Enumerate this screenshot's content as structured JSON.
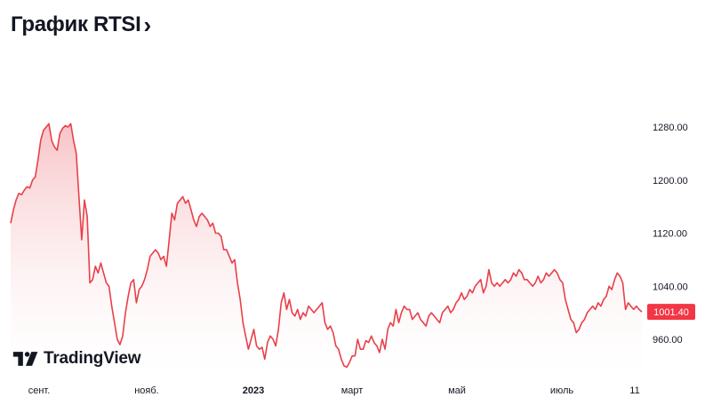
{
  "header": {
    "title": "График RTSI",
    "chevron": "›"
  },
  "branding": {
    "name": "TradingView",
    "logo_icon": "tradingview-logo-icon"
  },
  "colors": {
    "line": "#e8404a",
    "fill_top": "#f6b9bd",
    "fill_bottom": "#ffffff",
    "badge": "#f23645"
  },
  "chart_data": {
    "type": "area",
    "title": "График RTSI",
    "xlabel": "",
    "ylabel": "",
    "ylim": [
      920,
      1300
    ],
    "y_ticks": [
      1280,
      1200,
      1120,
      1040,
      960
    ],
    "y_tick_labels": [
      "1280.00",
      "1200.00",
      "1120.00",
      "1040.00",
      "960.00"
    ],
    "x_tick_labels": [
      {
        "label": "сент.",
        "bold": false
      },
      {
        "label": "нояб.",
        "bold": false
      },
      {
        "label": "2023",
        "bold": true
      },
      {
        "label": "март",
        "bold": false
      },
      {
        "label": "май",
        "bold": false
      },
      {
        "label": "июль",
        "bold": false
      },
      {
        "label": "11",
        "bold": false
      }
    ],
    "last_value": "1001.40",
    "grid": false,
    "legend": "none",
    "values": [
      1135,
      1155,
      1170,
      1180,
      1178,
      1185,
      1190,
      1188,
      1200,
      1205,
      1230,
      1260,
      1275,
      1280,
      1285,
      1260,
      1250,
      1245,
      1270,
      1278,
      1282,
      1280,
      1285,
      1260,
      1240,
      1175,
      1110,
      1170,
      1145,
      1045,
      1050,
      1070,
      1060,
      1075,
      1060,
      1045,
      1040,
      1010,
      985,
      960,
      952,
      965,
      1000,
      1025,
      1045,
      1050,
      1015,
      1035,
      1040,
      1050,
      1065,
      1085,
      1090,
      1095,
      1090,
      1080,
      1085,
      1070,
      1110,
      1150,
      1140,
      1165,
      1170,
      1175,
      1165,
      1170,
      1155,
      1140,
      1130,
      1145,
      1150,
      1145,
      1140,
      1130,
      1135,
      1120,
      1120,
      1115,
      1095,
      1095,
      1085,
      1075,
      1080,
      1045,
      1020,
      985,
      965,
      945,
      960,
      975,
      950,
      945,
      948,
      930,
      955,
      965,
      960,
      950,
      975,
      1015,
      1030,
      1005,
      1020,
      1000,
      995,
      1005,
      990,
      1000,
      995,
      1010,
      1005,
      1000,
      1005,
      1010,
      1015,
      985,
      975,
      980,
      970,
      950,
      945,
      930,
      920,
      918,
      925,
      935,
      935,
      960,
      945,
      945,
      958,
      955,
      965,
      955,
      950,
      940,
      960,
      945,
      975,
      985,
      980,
      1005,
      985,
      1000,
      1010,
      1005,
      1005,
      990,
      995,
      1000,
      990,
      985,
      980,
      995,
      1000,
      995,
      990,
      985,
      1000,
      1005,
      1010,
      1000,
      1005,
      1015,
      1020,
      1030,
      1020,
      1025,
      1035,
      1030,
      1040,
      1045,
      1050,
      1030,
      1040,
      1065,
      1045,
      1040,
      1045,
      1040,
      1045,
      1050,
      1045,
      1050,
      1060,
      1055,
      1065,
      1060,
      1050,
      1050,
      1045,
      1040,
      1045,
      1055,
      1045,
      1050,
      1060,
      1055,
      1060,
      1065,
      1060,
      1050,
      1045,
      1020,
      1005,
      990,
      985,
      970,
      975,
      985,
      990,
      1000,
      1005,
      1010,
      1005,
      1015,
      1010,
      1020,
      1025,
      1040,
      1035,
      1050,
      1060,
      1055,
      1045,
      1005,
      1015,
      1010,
      1005,
      1010,
      1005,
      1001.4
    ]
  }
}
